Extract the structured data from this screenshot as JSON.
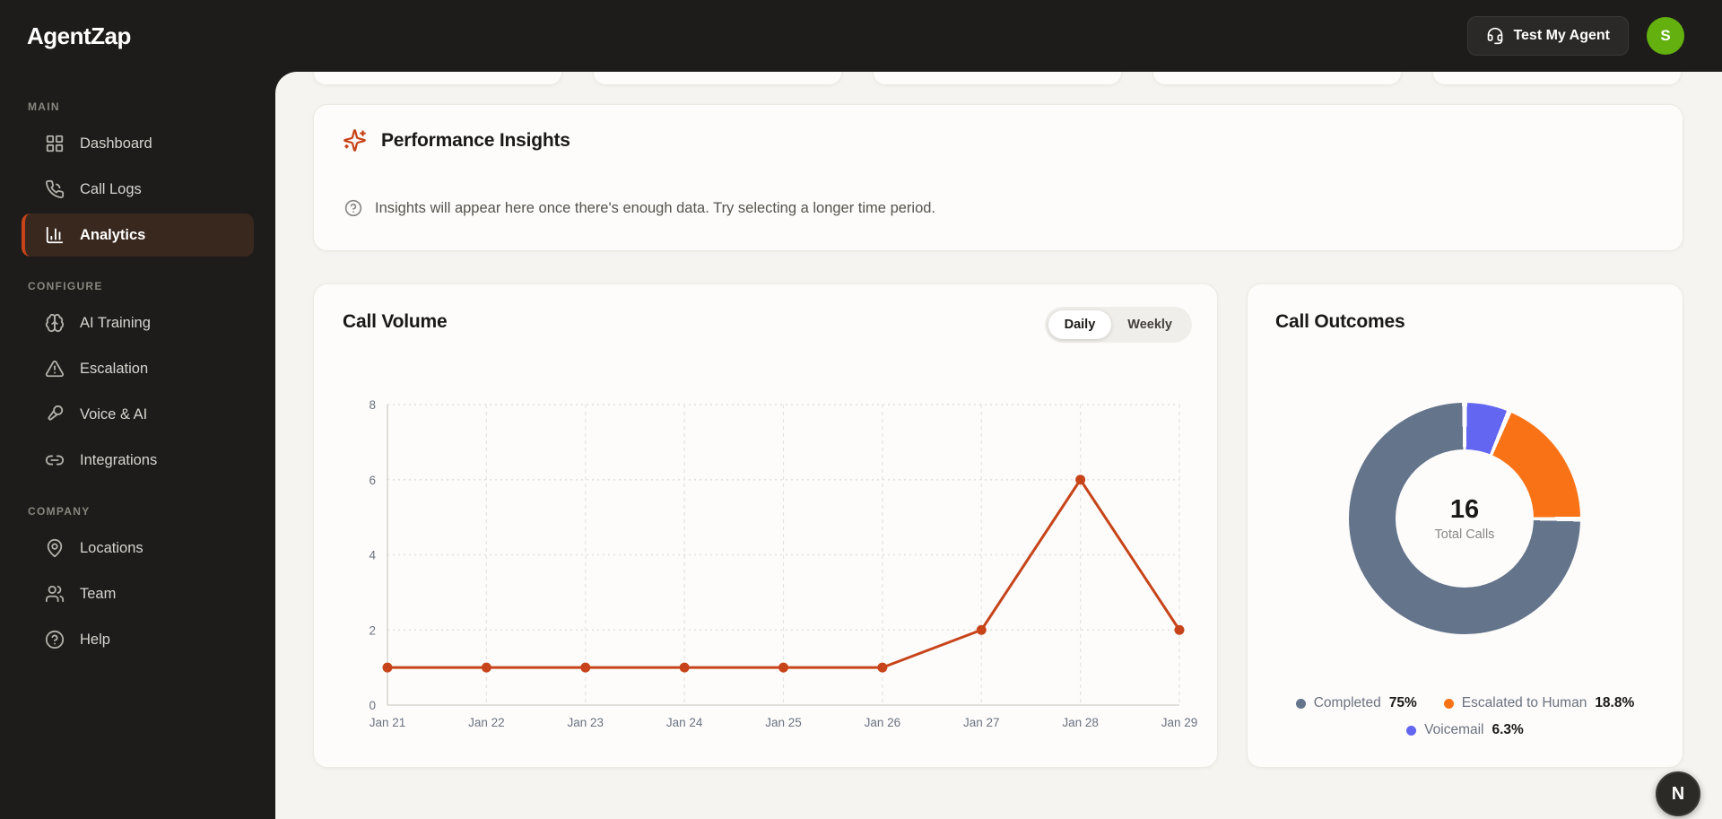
{
  "brand": {
    "name": "AgentZap"
  },
  "topbar": {
    "test_agent_label": "Test My Agent",
    "avatar_initial": "S"
  },
  "sidebar": {
    "sections": [
      {
        "label": "MAIN",
        "items": [
          {
            "label": "Dashboard",
            "icon": "layout-grid",
            "active": false
          },
          {
            "label": "Call Logs",
            "icon": "phone-call",
            "active": false
          },
          {
            "label": "Analytics",
            "icon": "chart-column",
            "active": true
          }
        ]
      },
      {
        "label": "CONFIGURE",
        "items": [
          {
            "label": "AI Training",
            "icon": "brain",
            "active": false
          },
          {
            "label": "Escalation",
            "icon": "triangle-alert",
            "active": false
          },
          {
            "label": "Voice & AI",
            "icon": "mic-vocal",
            "active": false
          },
          {
            "label": "Integrations",
            "icon": "link",
            "active": false
          }
        ]
      },
      {
        "label": "COMPANY",
        "items": [
          {
            "label": "Locations",
            "icon": "map-pin",
            "active": false
          },
          {
            "label": "Team",
            "icon": "users",
            "active": false
          },
          {
            "label": "Help",
            "icon": "help-circle",
            "active": false
          }
        ]
      }
    ]
  },
  "insights": {
    "title": "Performance Insights",
    "title_icon": "sparkles-icon",
    "message": "Insights will appear here once there's enough data. Try selecting a longer time period."
  },
  "call_volume": {
    "title": "Call Volume",
    "daily_label": "Daily",
    "weekly_label": "Weekly",
    "active_toggle": "Daily"
  },
  "call_outcomes": {
    "title": "Call Outcomes",
    "center_value": "16",
    "center_label": "Total Calls"
  },
  "floating_button": {
    "label": "N"
  },
  "colors": {
    "accent_orange": "#c7441a",
    "donut_completed": "#64748b",
    "donut_escalated": "#f97316",
    "donut_voicemail": "#6366f1",
    "avatar_green": "#63b00f",
    "dark_bg": "#1d1c1a",
    "content_bg": "#f6f4f0"
  },
  "chart_data": [
    {
      "type": "line",
      "title": "Call Volume",
      "x": [
        "Jan 21",
        "Jan 22",
        "Jan 23",
        "Jan 24",
        "Jan 25",
        "Jan 26",
        "Jan 27",
        "Jan 28",
        "Jan 29"
      ],
      "series": [
        {
          "name": "Calls",
          "values": [
            1,
            1,
            1,
            1,
            1,
            1,
            2,
            6,
            2
          ]
        }
      ],
      "xlabel": "",
      "ylabel": "",
      "ylim": [
        0,
        8
      ],
      "yticks": [
        0,
        2,
        4,
        6,
        8
      ],
      "grid": true,
      "line_color": "#c7441a"
    },
    {
      "type": "pie",
      "subtype": "donut",
      "title": "Call Outcomes",
      "labels": [
        "Completed",
        "Escalated to Human",
        "Voicemail"
      ],
      "values": [
        75,
        18.8,
        6.3
      ],
      "display_values": [
        "75%",
        "18.8%",
        "6.3%"
      ],
      "colors": [
        "#64748b",
        "#f97316",
        "#6366f1"
      ],
      "draw_order_from_top_clockwise": [
        "Voicemail",
        "Escalated to Human",
        "Completed"
      ],
      "center_value": "16",
      "center_label": "Total Calls",
      "legend_position": "bottom"
    }
  ]
}
